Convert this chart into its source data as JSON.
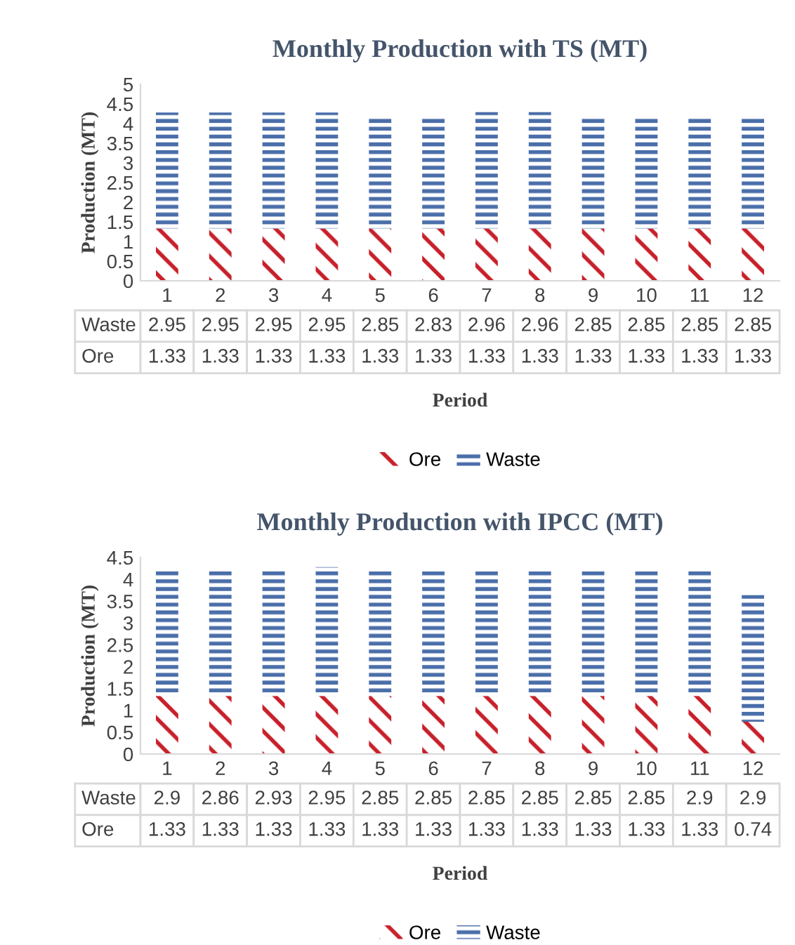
{
  "chart_data": [
    {
      "type": "bar",
      "title": "Monthly Production with TS (MT)",
      "xlabel": "Period",
      "ylabel": "Production (MT)",
      "stacked": true,
      "data_labels": true,
      "legend": "bottom",
      "grid": false,
      "categories": [
        "1",
        "2",
        "3",
        "4",
        "5",
        "6",
        "7",
        "8",
        "9",
        "10",
        "11",
        "12"
      ],
      "ylim": [
        0,
        5
      ],
      "yticks": [
        0,
        0.5,
        1,
        1.5,
        2,
        2.5,
        3,
        3.5,
        4,
        4.5,
        5
      ],
      "series": [
        {
          "name": "Ore",
          "color": "#c8202a",
          "values": [
            1.33,
            1.33,
            1.33,
            1.33,
            1.33,
            1.33,
            1.33,
            1.33,
            1.33,
            1.33,
            1.33,
            1.33
          ]
        },
        {
          "name": "Waste",
          "color": "#4a6ea9",
          "values": [
            2.95,
            2.95,
            2.95,
            2.95,
            2.85,
            2.83,
            2.96,
            2.96,
            2.85,
            2.85,
            2.85,
            2.85
          ]
        }
      ]
    },
    {
      "type": "bar",
      "title": "Monthly Production with IPCC (MT)",
      "xlabel": "Period",
      "ylabel": "Production (MT)",
      "stacked": true,
      "data_labels": true,
      "legend": "bottom",
      "grid": false,
      "categories": [
        "1",
        "2",
        "3",
        "4",
        "5",
        "6",
        "7",
        "8",
        "9",
        "10",
        "11",
        "12"
      ],
      "ylim": [
        0,
        4.5
      ],
      "yticks": [
        0,
        0.5,
        1,
        1.5,
        2,
        2.5,
        3,
        3.5,
        4,
        4.5
      ],
      "series": [
        {
          "name": "Ore",
          "color": "#c8202a",
          "values": [
            1.33,
            1.33,
            1.33,
            1.33,
            1.33,
            1.33,
            1.33,
            1.33,
            1.33,
            1.33,
            1.33,
            0.74
          ]
        },
        {
          "name": "Waste",
          "color": "#4a6ea9",
          "values": [
            2.9,
            2.86,
            2.93,
            2.95,
            2.85,
            2.85,
            2.85,
            2.85,
            2.85,
            2.85,
            2.9,
            2.9
          ]
        }
      ]
    }
  ]
}
